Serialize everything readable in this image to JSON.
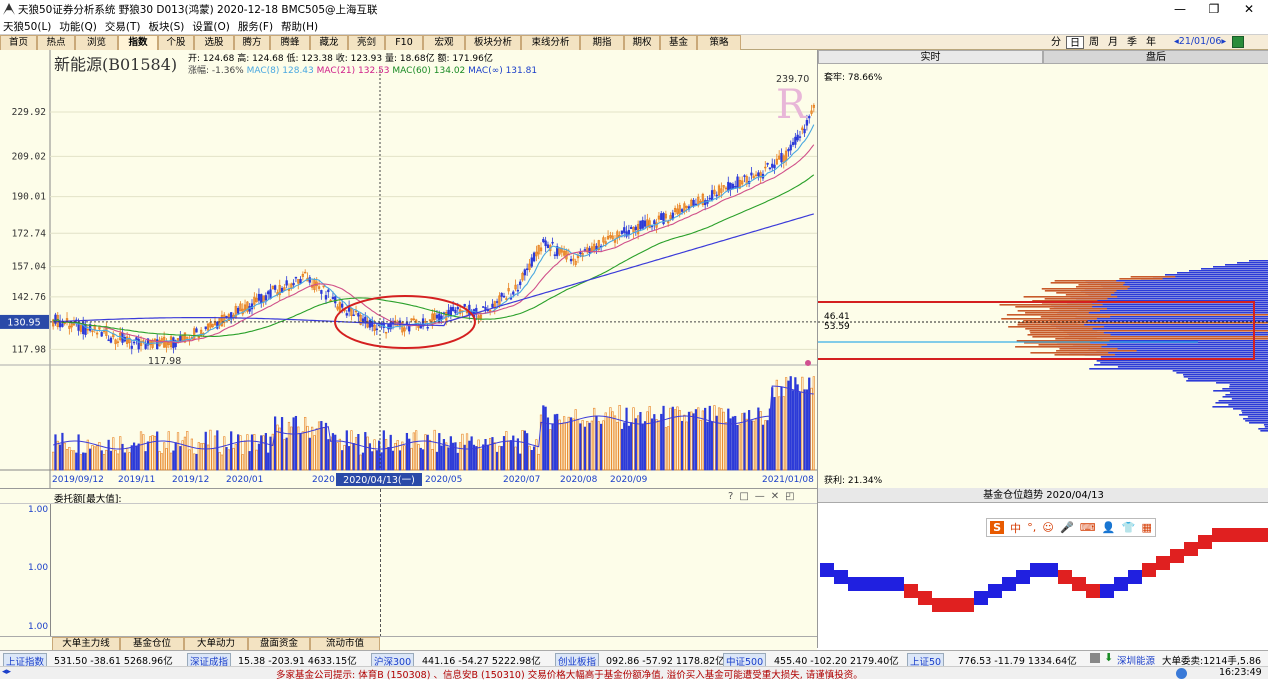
{
  "window": {
    "title": "天狼50证券分析系统 野狼30 D013(鸿蒙) 2020-12-18 BMC505@上海互联",
    "minimize": "—",
    "restore": "❐",
    "close": "✕"
  },
  "menu": [
    "天狼50(L)",
    "功能(Q)",
    "交易(T)",
    "板块(S)",
    "设置(O)",
    "服务(F)",
    "帮助(H)"
  ],
  "func_tabs": [
    "首页",
    "热点",
    "浏览",
    "指数",
    "个股",
    "选股",
    "腾方",
    "腾蜂",
    "藏龙",
    "亮剑",
    "F10",
    "宏观",
    "板块分析",
    "束线分析",
    "期指",
    "期权",
    "基金",
    "策略"
  ],
  "period_tabs": [
    "分",
    "日",
    "周",
    "月",
    "季",
    "年"
  ],
  "period_selected": "日",
  "date_nav": "◂21/01/06▸",
  "stock": {
    "name": "新能源(B01584)",
    "ohlc": "开: 124.68 高: 124.68 低: 123.38 收: 123.93 量: 18.68亿 额: 171.96亿",
    "change": "涨幅: -1.36%",
    "mac8": "MAC(8) 128.43",
    "mac21": "MAC(21) 132.53",
    "mac60": "MAC(60) 134.02",
    "macinf": "MAC(∞) 131.81",
    "price_labels": [
      "229.92",
      "209.02",
      "190.01",
      "172.74",
      "157.04",
      "142.76",
      "117.98"
    ],
    "cursor_price": "130.95",
    "high_label": "239.70",
    "low_label": "117.98",
    "time_labels": [
      "2019/09/12",
      "2019/11",
      "2019/12",
      "2020/01",
      "2020",
      "2020/05",
      "2020/07",
      "2020/08",
      "2020/09",
      "2021/01/08"
    ],
    "cursor_date": "2020/04/13(一)",
    "r_mark": "R"
  },
  "chips": {
    "tab_realtime": "实时",
    "tab_after": "盘后",
    "trapped": "套牢: 78.66%",
    "profit": "获利: 21.34%",
    "val1": "46.41",
    "val2": "53.59"
  },
  "lower": {
    "title": "委托额[最大值]:",
    "y_labels": [
      "1.00",
      "1.00",
      "1.00"
    ],
    "controls": [
      "?",
      "□",
      "—",
      "✕",
      "◰"
    ],
    "tabs": [
      "大单主力线",
      "基金仓位",
      "大单动力",
      "盘面资金",
      "流动市值"
    ]
  },
  "fund_trend": {
    "title": "基金仓位趋势 2020/04/13",
    "ime": [
      "S",
      "中",
      "°,",
      "☺",
      "🎤",
      "⌨",
      "👤",
      "👕",
      "▦"
    ]
  },
  "status": [
    {
      "name": "上证指数",
      "data": "531.50 -38.61 5268.96亿"
    },
    {
      "name": "深证成指",
      "data": "15.38 -203.91 4633.15亿"
    },
    {
      "name": "沪深300",
      "data": "441.16 -54.27 5222.98亿"
    },
    {
      "name": "创业板指",
      "data": "092.86 -57.92 1178.82亿"
    },
    {
      "name": "中证500",
      "data": "455.40 -102.20 2179.40亿"
    },
    {
      "name": "上证50",
      "data": "776.53 -11.79 1334.64亿"
    }
  ],
  "status_right": {
    "name": "深圳能源",
    "data": "大单委卖:1214手,5.86"
  },
  "notice": "多家基金公司提示: 体育B (150308) 、信息安B (150310) 交易价格大幅高于基金份额净值, 溢价买入基金可能遭受重大损失, 请谨慎投资。",
  "clock": "16:23:49",
  "colors": {
    "up": "#e8801e",
    "down": "#2c3ad8",
    "ma8": "#4aa8e0",
    "ma21": "#d0508a",
    "ma60": "#2aa02a",
    "mainf": "#3b3bd9"
  }
}
